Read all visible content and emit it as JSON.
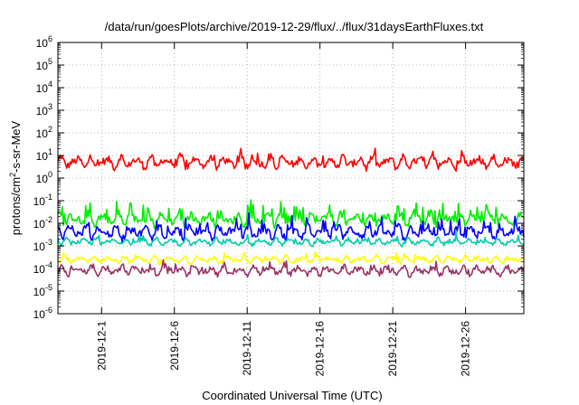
{
  "chart_data": {
    "type": "line",
    "title": "/data/run/goesPlots/archive/2019-12-29/flux/../flux/31daysEarthFluxes.txt",
    "xlabel": "Coordinated Universal Time (UTC)",
    "ylabel_main": "protons/cm",
    "ylabel_sup": "2",
    "ylabel_rest": "-s-sr-MeV",
    "x_range": [
      "2019-11-28",
      "2019-12-30"
    ],
    "y_scale": "log",
    "ylim": [
      1e-06,
      1000000.0
    ],
    "grid": true,
    "x_ticks": [
      {
        "date": "2019-12-01",
        "label": "2019-12-1"
      },
      {
        "date": "2019-12-06",
        "label": "2019-12-6"
      },
      {
        "date": "2019-12-11",
        "label": "2019-12-11"
      },
      {
        "date": "2019-12-16",
        "label": "2019-12-16"
      },
      {
        "date": "2019-12-21",
        "label": "2019-12-21"
      },
      {
        "date": "2019-12-26",
        "label": "2019-12-26"
      }
    ],
    "y_ticks": [
      {
        "value": 1e-06,
        "base": "10",
        "exp": "-6"
      },
      {
        "value": 1e-05,
        "base": "10",
        "exp": "-5"
      },
      {
        "value": 0.0001,
        "base": "10",
        "exp": "-4"
      },
      {
        "value": 0.001,
        "base": "10",
        "exp": "-3"
      },
      {
        "value": 0.01,
        "base": "10",
        "exp": "-2"
      },
      {
        "value": 0.1,
        "base": "10",
        "exp": "-1"
      },
      {
        "value": 1.0,
        "base": "10",
        "exp": "0"
      },
      {
        "value": 10.0,
        "base": "10",
        "exp": "1"
      },
      {
        "value": 100.0,
        "base": "10",
        "exp": "2"
      },
      {
        "value": 1000.0,
        "base": "10",
        "exp": "3"
      },
      {
        "value": 10000.0,
        "base": "10",
        "exp": "4"
      },
      {
        "value": 100000.0,
        "base": "10",
        "exp": "5"
      },
      {
        "value": 1000000.0,
        "base": "10",
        "exp": "6"
      }
    ],
    "series": [
      {
        "color": "#ff0000",
        "baseline": 5,
        "spread_decades": 0.35,
        "spike_decades": 0.4,
        "spike_prob": 0.08
      },
      {
        "color": "#00ee00",
        "baseline": 0.015,
        "spread_decades": 0.35,
        "spike_decades": 0.7,
        "spike_prob": 0.18
      },
      {
        "color": "#0000ff",
        "baseline": 0.004,
        "spread_decades": 0.35,
        "spike_decades": 0.55,
        "spike_prob": 0.15
      },
      {
        "color": "#00ccaa",
        "baseline": 0.0015,
        "spread_decades": 0.18,
        "spike_decades": 0.3,
        "spike_prob": 0.08
      },
      {
        "color": "#ffff00",
        "baseline": 0.00025,
        "spread_decades": 0.2,
        "spike_decades": 0.25,
        "spike_prob": 0.08
      },
      {
        "color": "#993366",
        "baseline": 8e-05,
        "spread_decades": 0.25,
        "spike_decades": 0.3,
        "spike_prob": 0.1
      }
    ]
  }
}
